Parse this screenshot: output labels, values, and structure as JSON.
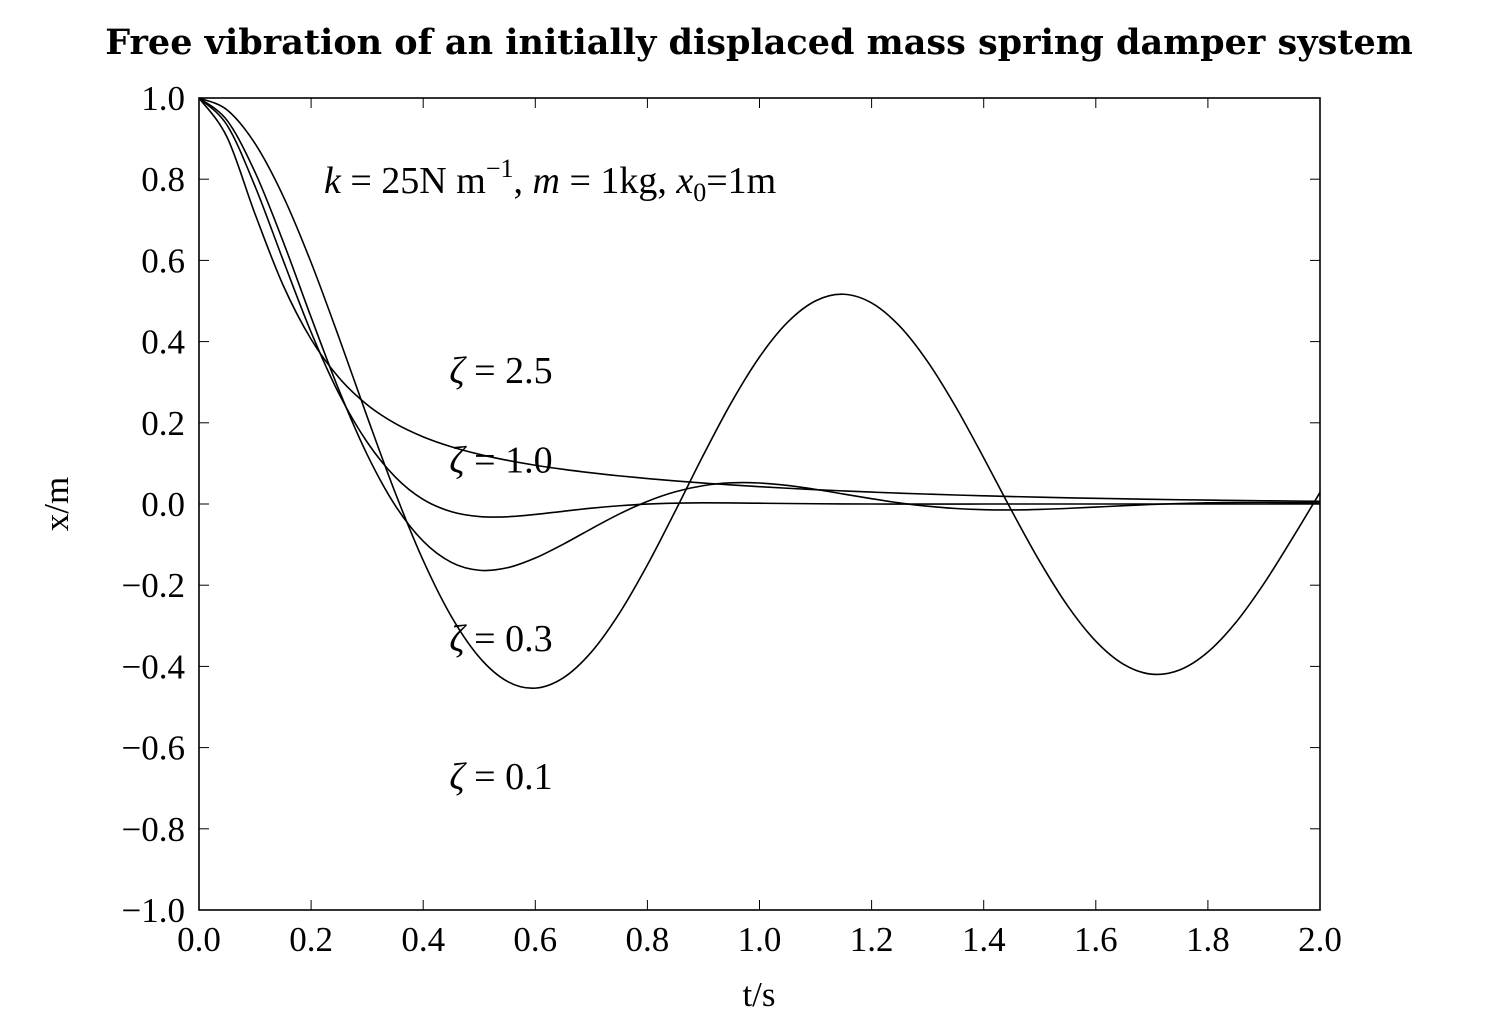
{
  "chart_data": {
    "type": "line",
    "title": "Free vibration of an initially displaced mass spring damper system",
    "xlabel": "t/s",
    "ylabel": "x/m",
    "xlim": [
      0.0,
      2.0
    ],
    "ylim": [
      -1.0,
      1.0
    ],
    "x_ticks": [
      0.0,
      0.2,
      0.4,
      0.6,
      0.8,
      1.0,
      1.2,
      1.4,
      1.6,
      1.8,
      2.0
    ],
    "x_tick_labels": [
      "0.0",
      "0.2",
      "0.4",
      "0.6",
      "0.8",
      "1.0",
      "1.2",
      "1.4",
      "1.6",
      "1.8",
      "2.0"
    ],
    "y_ticks": [
      1.0,
      0.8,
      0.6,
      0.4,
      0.2,
      0.0,
      -0.2,
      -0.4,
      -0.6,
      -0.8,
      -1.0
    ],
    "y_tick_labels": [
      "1.0",
      "0.8",
      "0.6",
      "0.4",
      "0.2",
      "0.0",
      "−0.2",
      "−0.4",
      "−0.6",
      "−0.8",
      "−1.0"
    ],
    "grid": false,
    "parameters": {
      "k_label": "k",
      "k_value": " = 25N m",
      "k_exponent": "−1",
      "m_label": "m",
      "m_value": " = 1kg, ",
      "x0_label": "x",
      "x0_subscript": "0",
      "x0_value": "=1m",
      "separator": ", "
    },
    "annotations": [
      {
        "symbol": "ζ",
        "text": " = 2.5",
        "x": 0.5,
        "y": 0.33
      },
      {
        "symbol": "ζ",
        "text": " = 1.0",
        "x": 0.5,
        "y": 0.11
      },
      {
        "symbol": "ζ",
        "text": " = 0.3",
        "x": 0.5,
        "y": -0.33
      },
      {
        "symbol": "ζ",
        "text": " = 0.1",
        "x": 0.5,
        "y": -0.67
      }
    ],
    "series": [
      {
        "x": [
          0.0,
          0.05,
          0.1,
          0.15,
          0.2,
          0.25,
          0.3,
          0.35,
          0.4,
          0.45,
          0.5,
          0.55,
          0.6,
          0.65,
          0.7,
          0.75,
          0.8,
          0.85,
          0.9,
          0.95,
          1.0,
          1.05,
          1.1,
          1.15,
          1.2,
          1.25,
          1.3,
          1.35,
          1.4,
          1.45,
          1.5,
          1.55,
          1.6,
          1.65,
          1.7,
          1.75,
          1.8,
          1.85,
          1.9,
          1.95,
          2.0
        ],
        "values": [
          1.0,
          0.9708,
          0.8877,
          0.7588,
          0.5948,
          0.4088,
          0.2151,
          0.0281,
          -0.1391,
          -0.2766,
          -0.3773,
          -0.4368,
          -0.4535,
          -0.4281,
          -0.3647,
          -0.2693,
          -0.15,
          -0.0166,
          0.1209,
          0.2505,
          0.3621,
          0.4474,
          0.5003,
          0.5166,
          0.4952,
          0.4382,
          0.3505,
          0.2395,
          0.1137,
          -0.0169,
          -0.1415,
          -0.2513,
          -0.3379,
          -0.3952,
          -0.4192,
          -0.4085,
          -0.3645,
          -0.2915,
          -0.1959,
          -0.0861,
          0.0285
        ]
      },
      {
        "x": [
          0.0,
          0.05,
          0.1,
          0.15,
          0.2,
          0.25,
          0.3,
          0.35,
          0.4,
          0.45,
          0.5,
          0.55,
          0.6,
          0.65,
          0.7,
          0.75,
          0.8,
          0.85,
          0.9,
          0.95,
          1.0,
          1.05,
          1.1,
          1.15,
          1.2,
          1.25,
          1.3,
          1.35,
          1.4,
          1.45,
          1.5,
          1.55,
          1.6,
          1.65,
          1.7,
          1.75,
          1.8,
          1.85,
          1.9,
          1.95,
          2.0
        ],
        "values": [
          1.0,
          0.945,
          0.8172,
          0.6468,
          0.4601,
          0.2796,
          0.1218,
          -0.0034,
          -0.0917,
          -0.1436,
          -0.1632,
          -0.1571,
          -0.1331,
          -0.0989,
          -0.061,
          -0.0245,
          0.0066,
          0.0302,
          0.0453,
          0.0521,
          0.0517,
          0.0457,
          0.036,
          0.0245,
          0.013,
          0.0027,
          -0.0055,
          -0.0111,
          -0.0141,
          -0.0147,
          -0.0134,
          -0.0108,
          -0.0076,
          -0.0042,
          -0.0012,
          0.0012,
          0.0028,
          0.0036,
          0.0037,
          0.0033,
          0.0026
        ]
      },
      {
        "x": [
          0.0,
          0.05,
          0.1,
          0.15,
          0.2,
          0.25,
          0.3,
          0.35,
          0.4,
          0.45,
          0.5,
          0.55,
          0.6,
          0.65,
          0.7,
          0.75,
          0.8,
          0.85,
          0.9,
          0.95,
          1.0,
          1.05,
          1.1,
          1.15,
          1.2,
          1.25,
          1.3,
          1.35,
          1.4,
          1.45,
          1.5,
          1.55,
          1.6,
          1.65,
          1.7,
          1.75,
          1.8,
          1.85,
          1.9,
          1.95,
          2.0
        ],
        "values": [
          1.0,
          0.9332,
          0.7825,
          0.6009,
          0.4232,
          0.2708,
          0.1524,
          0.0668,
          0.0111,
          -0.0188,
          -0.0309,
          -0.0315,
          -0.0258,
          -0.0179,
          -0.0103,
          -0.0043,
          -0.0001,
          0.0021,
          0.0028,
          0.0026,
          0.0019,
          0.0012,
          0.0006,
          0.0002,
          0.0,
          -0.0001,
          -0.0001,
          -0.0001,
          0.0,
          0.0,
          0.0,
          0.0,
          0.0,
          0.0,
          0.0,
          0.0,
          0.0,
          0.0,
          0.0,
          0.0,
          0.0
        ]
      },
      {
        "x": [
          0.0,
          0.05,
          0.1,
          0.15,
          0.2,
          0.25,
          0.3,
          0.35,
          0.4,
          0.45,
          0.5,
          0.55,
          0.6,
          0.65,
          0.7,
          0.75,
          0.8,
          0.85,
          0.9,
          0.95,
          1.0,
          1.05,
          1.1,
          1.15,
          1.2,
          1.25,
          1.3,
          1.35,
          1.4,
          1.45,
          1.5,
          1.55,
          1.6,
          1.65,
          1.7,
          1.75,
          1.8,
          1.85,
          1.9,
          1.95,
          2.0
        ],
        "values": [
          1.0,
          0.9037,
          0.7143,
          0.5391,
          0.4058,
          0.3106,
          0.2445,
          0.1984,
          0.1654,
          0.141,
          0.1224,
          0.1076,
          0.0955,
          0.0854,
          0.0768,
          0.0693,
          0.0627,
          0.0568,
          0.0516,
          0.0469,
          0.0427,
          0.0388,
          0.0353,
          0.0322,
          0.0293,
          0.0267,
          0.0243,
          0.0222,
          0.0202,
          0.0184,
          0.0168,
          0.0153,
          0.0139,
          0.0127,
          0.0116,
          0.0105,
          0.0096,
          0.0088,
          0.008,
          0.0073,
          0.0066
        ]
      }
    ]
  }
}
